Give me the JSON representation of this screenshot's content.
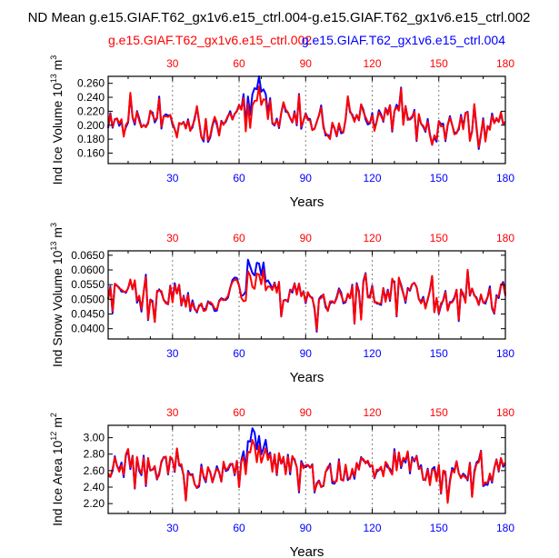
{
  "main_title": "ND Mean g.e15.GIAF.T62_gx1v6.e15_ctrl.004-g.e15.GIAF.T62_gx1v6.e15_ctrl.002",
  "legend": {
    "left_label": "g.e15.GIAF.T62_gx1v6.e15_ctrl.002",
    "right_label": "g.e15.GIAF.T62_gx1v6.e15_ctrl.004"
  },
  "colors": {
    "ctrl002": "#ff0000",
    "ctrl004": "#0000ff",
    "grid": "#808080",
    "axis": "#000000"
  },
  "chart_data": [
    {
      "type": "line",
      "title": "",
      "xlabel": "Years",
      "ylabel_main": "Ind Ice Volume 10",
      "ylabel_exp": "13",
      "ylabel_unit": "m",
      "ylabel_unit_exp": "3",
      "xlim": [
        1,
        180
      ],
      "ylim": [
        0.145,
        0.27
      ],
      "xticks": [
        "30",
        "60",
        "90",
        "120",
        "150",
        "180"
      ],
      "xtick_values": [
        30,
        60,
        90,
        120,
        150,
        180
      ],
      "top_xticks": [
        "30",
        "60",
        "90",
        "120",
        "150",
        "180"
      ],
      "yticks": [
        "0.160",
        "0.180",
        "0.200",
        "0.220",
        "0.240",
        "0.260"
      ],
      "ytick_values": [
        0.16,
        0.18,
        0.2,
        0.22,
        0.24,
        0.26
      ],
      "grid_x": [
        30,
        60,
        90,
        120,
        150
      ],
      "seed": 11,
      "base": 0.205,
      "amp": 0.02,
      "spike": 0.03,
      "series": [
        {
          "name": "g.e15.GIAF.T62_gx1v6.e15_ctrl.002",
          "color": "#ff0000",
          "key": "ctrl002"
        },
        {
          "name": "g.e15.GIAF.T62_gx1v6.e15_ctrl.004",
          "color": "#0000ff",
          "key": "ctrl004"
        }
      ]
    },
    {
      "type": "line",
      "title": "",
      "xlabel": "Years",
      "ylabel_main": "Ind Snow Volume 10",
      "ylabel_exp": "13",
      "ylabel_unit": "m",
      "ylabel_unit_exp": "3",
      "xlim": [
        1,
        180
      ],
      "ylim": [
        0.0365,
        0.0665
      ],
      "xticks": [
        "30",
        "60",
        "90",
        "120",
        "150",
        "180"
      ],
      "xtick_values": [
        30,
        60,
        90,
        120,
        150,
        180
      ],
      "top_xticks": [
        "30",
        "60",
        "90",
        "120",
        "150",
        "180"
      ],
      "yticks": [
        "0.0400",
        "0.0450",
        "0.0500",
        "0.0550",
        "0.0600",
        "0.0650"
      ],
      "ytick_values": [
        0.04,
        0.045,
        0.05,
        0.055,
        0.06,
        0.065
      ],
      "grid_x": [
        30,
        60,
        90,
        120,
        150
      ],
      "seed": 23,
      "base": 0.0515,
      "amp": 0.0048,
      "spike": 0.0075,
      "series": [
        {
          "name": "g.e15.GIAF.T62_gx1v6.e15_ctrl.002",
          "color": "#ff0000",
          "key": "ctrl002"
        },
        {
          "name": "g.e15.GIAF.T62_gx1v6.e15_ctrl.004",
          "color": "#0000ff",
          "key": "ctrl004"
        }
      ]
    },
    {
      "type": "line",
      "title": "",
      "xlabel": "Years",
      "ylabel_main": "Ind Ice Area 10",
      "ylabel_exp": "12",
      "ylabel_unit": "m",
      "ylabel_unit_exp": "2",
      "xlim": [
        1,
        180
      ],
      "ylim": [
        2.08,
        3.15
      ],
      "xticks": [
        "30",
        "60",
        "90",
        "120",
        "150",
        "180"
      ],
      "xtick_values": [
        30,
        60,
        90,
        120,
        150,
        180
      ],
      "top_xticks": [
        "30",
        "60",
        "90",
        "120",
        "150",
        "180"
      ],
      "yticks": [
        "2.20",
        "2.40",
        "2.60",
        "2.80",
        "3.00"
      ],
      "ytick_values": [
        2.2,
        2.4,
        2.6,
        2.8,
        3.0
      ],
      "grid_x": [
        30,
        60,
        90,
        120,
        150
      ],
      "seed": 37,
      "base": 2.62,
      "amp": 0.18,
      "spike": 0.25,
      "series": [
        {
          "name": "g.e15.GIAF.T62_gx1v6.e15_ctrl.002",
          "color": "#ff0000",
          "key": "ctrl002"
        },
        {
          "name": "g.e15.GIAF.T62_gx1v6.e15_ctrl.004",
          "color": "#0000ff",
          "key": "ctrl004"
        }
      ]
    }
  ]
}
